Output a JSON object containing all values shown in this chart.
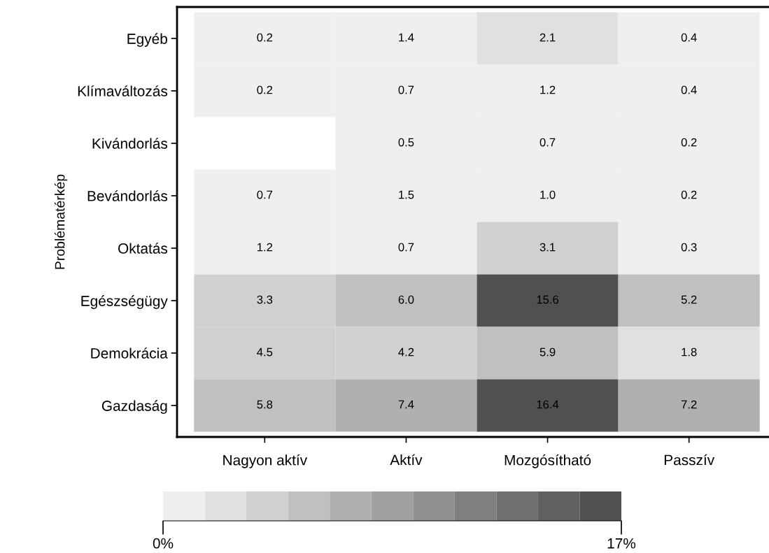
{
  "chart_data": {
    "type": "heatmap",
    "ylabel": "Problématérkép",
    "categories": [
      "Nagyon aktív",
      "Aktív",
      "Mozgósítható",
      "Passzív"
    ],
    "y_categories": [
      "Egyéb",
      "Klímaváltozás",
      "Kivándorlás",
      "Bevándorlás",
      "Oktatás",
      "Egészségügy",
      "Demokrácia",
      "Gazdaság"
    ],
    "cells": [
      [
        0.2,
        1.4,
        2.1,
        0.4
      ],
      [
        0.2,
        0.7,
        1.2,
        0.4
      ],
      [
        null,
        0.5,
        0.7,
        0.2
      ],
      [
        0.7,
        1.5,
        1.0,
        0.2
      ],
      [
        1.2,
        0.7,
        3.1,
        0.3
      ],
      [
        3.3,
        6.0,
        15.6,
        5.2
      ],
      [
        4.5,
        4.2,
        5.9,
        1.8
      ],
      [
        5.8,
        7.4,
        16.4,
        7.2
      ]
    ],
    "colors": [
      "#efefef",
      "#e0e0e0",
      "#d0d0d0",
      "#c0c0c0",
      "#b0b0b0",
      "#a0a0a0",
      "#909090",
      "#808080",
      "#707070",
      "#606060",
      "#505050"
    ],
    "clim": [
      0,
      17
    ],
    "cticks": [
      {
        "value": 0,
        "label": "0%"
      },
      {
        "value": 17,
        "label": "17%"
      }
    ],
    "cell_labels": [
      [
        "0.2",
        "1.4",
        "2.1",
        "0.4"
      ],
      [
        "0.2",
        "0.7",
        "1.2",
        "0.4"
      ],
      [
        null,
        "0.5",
        "0.7",
        "0.2"
      ],
      [
        "0.7",
        "1.5",
        "1.0",
        "0.2"
      ],
      [
        "1.2",
        "0.7",
        "3.1",
        "0.3"
      ],
      [
        "3.3",
        "6.0",
        "15.6",
        "5.2"
      ],
      [
        "4.5",
        "4.2",
        "5.9",
        "1.8"
      ],
      [
        "5.8",
        "7.4",
        "16.4",
        "7.2"
      ]
    ],
    "grid": false
  }
}
